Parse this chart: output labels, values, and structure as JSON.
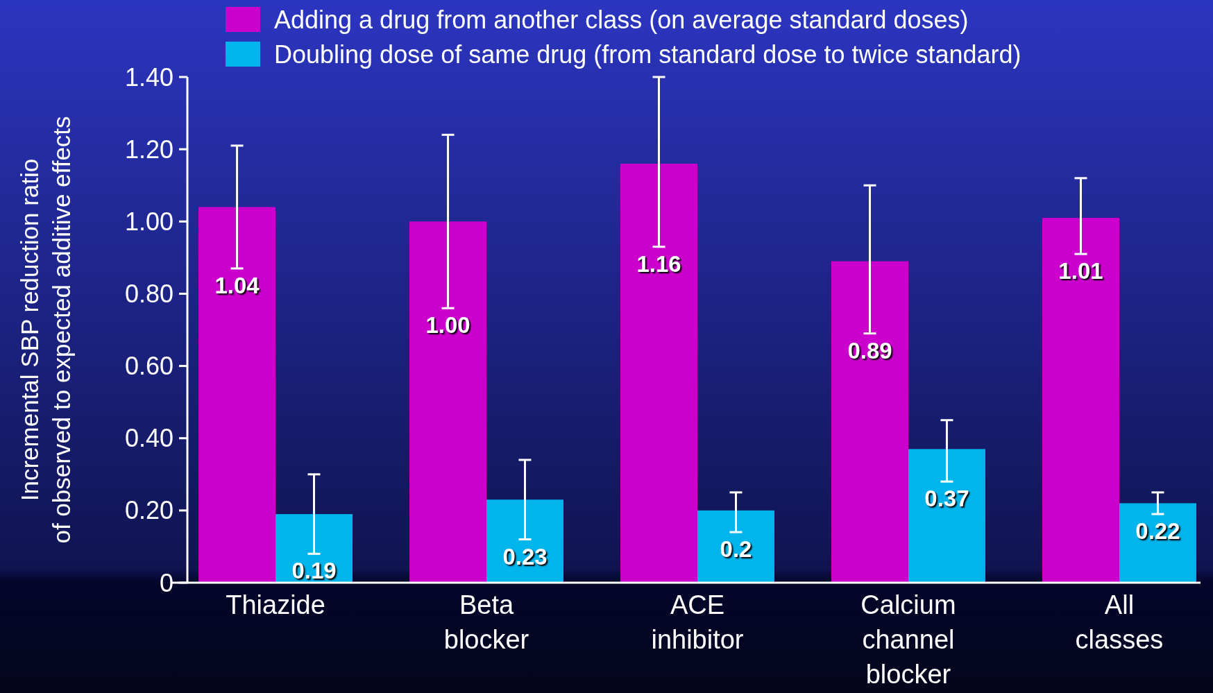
{
  "chart_data": {
    "type": "bar",
    "ylabel": "Incremental SBP reduction ratio\nof observed to expected additive effects",
    "categories": [
      "Thiazide",
      "Beta blocker",
      "ACE inhibitor",
      "Calcium channel blocker",
      "All classes"
    ],
    "series": [
      {
        "name": "Adding a drug from another class (on average standard doses)",
        "color": "#cc00cc",
        "values": [
          1.04,
          1.0,
          1.16,
          0.89,
          1.01
        ],
        "value_labels": [
          "1.04",
          "1.00",
          "1.16",
          "0.89",
          "1.01"
        ],
        "errors": [
          [
            0.87,
            1.21
          ],
          [
            0.76,
            1.24
          ],
          [
            0.93,
            1.4
          ],
          [
            0.69,
            1.1
          ],
          [
            0.91,
            1.12
          ]
        ]
      },
      {
        "name": "Doubling dose of same drug (from standard dose to twice standard)",
        "color": "#00b4ec",
        "values": [
          0.19,
          0.23,
          0.2,
          0.37,
          0.22
        ],
        "value_labels": [
          "0.19",
          "0.23",
          "0.2",
          "0.37",
          "0.22"
        ],
        "errors": [
          [
            0.08,
            0.3
          ],
          [
            0.12,
            0.34
          ],
          [
            0.14,
            0.25
          ],
          [
            0.28,
            0.45
          ],
          [
            0.19,
            0.25
          ]
        ]
      }
    ],
    "ylim": [
      0,
      1.4
    ],
    "yticks": [
      0,
      {
        "value": 0.2,
        "label": "0.20"
      },
      {
        "value": 0.4,
        "label": "0.40"
      },
      {
        "value": 0.6,
        "label": "0.60"
      },
      {
        "value": 0.8,
        "label": "0.80"
      },
      {
        "value": 1,
        "label": "1.00"
      },
      {
        "value": 1.2,
        "label": "1.20"
      },
      {
        "value": 1.4,
        "label": "1.40"
      }
    ],
    "legend": "top",
    "grid": false
  }
}
